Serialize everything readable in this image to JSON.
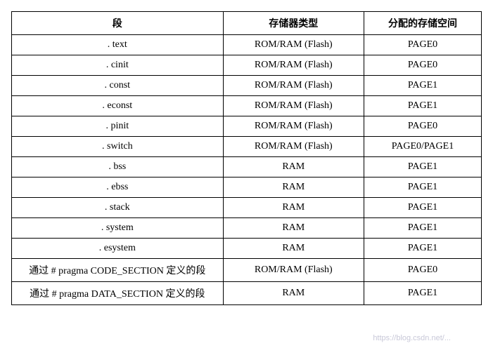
{
  "table": {
    "columns": [
      "段",
      "存储器类型",
      "分配的存储空间"
    ],
    "rows": [
      [
        ". text",
        "ROM/RAM (Flash)",
        "PAGE0"
      ],
      [
        ". cinit",
        "ROM/RAM (Flash)",
        "PAGE0"
      ],
      [
        ". const",
        "ROM/RAM (Flash)",
        "PAGE1"
      ],
      [
        ". econst",
        "ROM/RAM (Flash)",
        "PAGE1"
      ],
      [
        ". pinit",
        "ROM/RAM (Flash)",
        "PAGE0"
      ],
      [
        ". switch",
        "ROM/RAM (Flash)",
        "PAGE0/PAGE1"
      ],
      [
        ". bss",
        "RAM",
        "PAGE1"
      ],
      [
        ". ebss",
        "RAM",
        "PAGE1"
      ],
      [
        ". stack",
        "RAM",
        "PAGE1"
      ],
      [
        ". system",
        "RAM",
        "PAGE1"
      ],
      [
        ". esystem",
        "RAM",
        "PAGE1"
      ],
      [
        "通过 # pragma CODE_SECTION 定义的段",
        "ROM/RAM (Flash)",
        "PAGE0"
      ],
      [
        "通过 # pragma DATA_SECTION 定义的段",
        "RAM",
        "PAGE1"
      ]
    ],
    "border_color": "#000000",
    "background_color": "#ffffff",
    "font_size": 14,
    "col_widths_pct": [
      45,
      30,
      25
    ]
  },
  "watermarks": {
    "top_right": "",
    "bottom": "https://blog.csdn.net/..."
  }
}
